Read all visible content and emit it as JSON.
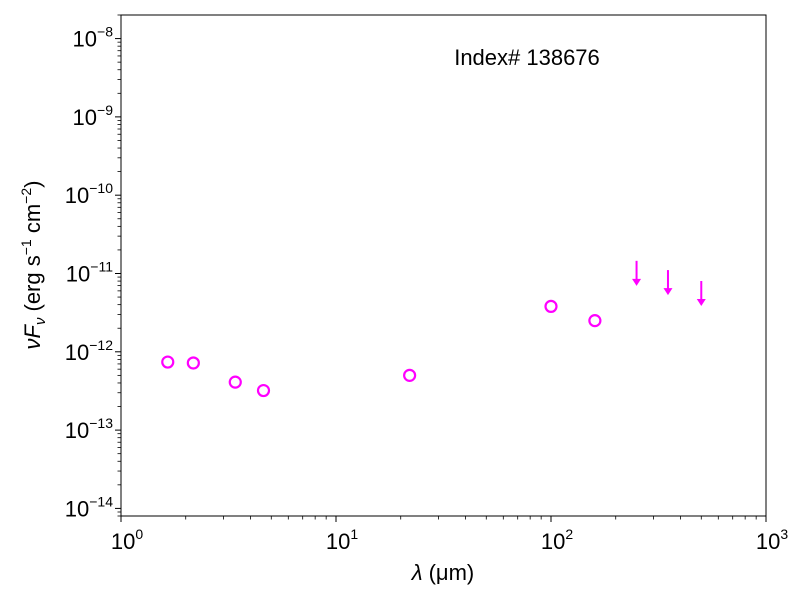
{
  "chart_data": {
    "type": "scatter",
    "title": "",
    "annotation": "Index# 138676",
    "xlabel": {
      "var": "λ",
      "unit": "(μm)"
    },
    "ylabel": {
      "var": "νF",
      "sub": "ν",
      "unit_a": "(erg s",
      "exp_a": "−1",
      "unit_b": " cm",
      "exp_b": "−2",
      "close": ")"
    },
    "xscale": "log",
    "yscale": "log",
    "xlim": [
      1,
      1000
    ],
    "ylim": [
      8e-15,
      2e-08
    ],
    "x_ticks": [
      {
        "base": "10",
        "exp": "0",
        "value": 1
      },
      {
        "base": "10",
        "exp": "1",
        "value": 10
      },
      {
        "base": "10",
        "exp": "2",
        "value": 100
      },
      {
        "base": "10",
        "exp": "3",
        "value": 1000
      }
    ],
    "y_ticks": [
      {
        "base": "10",
        "exp": "−14",
        "value": 1e-14
      },
      {
        "base": "10",
        "exp": "−13",
        "value": 1e-13
      },
      {
        "base": "10",
        "exp": "−12",
        "value": 1e-12
      },
      {
        "base": "10",
        "exp": "−11",
        "value": 1e-11
      },
      {
        "base": "10",
        "exp": "−10",
        "value": 1e-10
      },
      {
        "base": "10",
        "exp": "−9",
        "value": 1e-09
      },
      {
        "base": "10",
        "exp": "−8",
        "value": 1e-08
      }
    ],
    "marker_color": "#ff00ff",
    "detections": [
      {
        "x": 1.65,
        "y": 7.4e-13
      },
      {
        "x": 2.17,
        "y": 7.2e-13
      },
      {
        "x": 3.4,
        "y": 4.1e-13
      },
      {
        "x": 4.6,
        "y": 3.2e-13
      },
      {
        "x": 22,
        "y": 5e-13
      },
      {
        "x": 100,
        "y": 3.8e-12
      },
      {
        "x": 160,
        "y": 2.5e-12
      }
    ],
    "upper_limits": [
      {
        "x": 250,
        "y": 1.05e-11
      },
      {
        "x": 350,
        "y": 8e-12
      },
      {
        "x": 500,
        "y": 5.8e-12
      }
    ]
  }
}
